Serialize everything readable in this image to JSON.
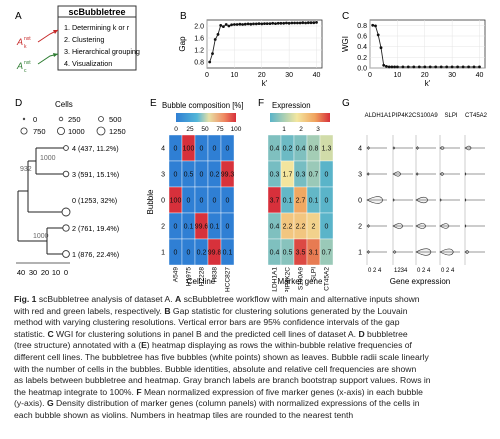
{
  "panels": {
    "A": {
      "letter": "A",
      "title": "scBubbletree",
      "steps": [
        "1. Determining k or r",
        "2. Clustering",
        "3. Hierarchical grouping",
        "4. Visualization"
      ],
      "alt_label_1": "A",
      "alt_label_1_sup": "nxt",
      "alt_label_1_sub": "k",
      "alt_label_2": "A",
      "alt_label_2_sup": "nxt",
      "alt_label_2_sub": "c"
    },
    "B": {
      "letter": "B"
    },
    "C": {
      "letter": "C"
    },
    "D": {
      "letter": "D",
      "legend_title": "Cells",
      "legend_sizes": [
        "0",
        "250",
        "500",
        "750",
        "1000",
        "1250"
      ],
      "bootstrap_labels": [
        "1000",
        "932",
        "1000"
      ],
      "leaves": [
        "4 (437, 11.2%)",
        "3 (591, 15.1%)",
        "0 (1253, 32%)",
        "2 (761, 19.4%)",
        "1 (876, 22.4%)"
      ],
      "axis_ticks": [
        "40",
        "30",
        "20",
        "10",
        "0"
      ]
    },
    "E": {
      "letter": "E",
      "title": "Bubble composition [%]",
      "scale_ticks": [
        "0",
        "25",
        "50",
        "75",
        "100"
      ],
      "y_label": "Bubble",
      "x_label": "Cell line",
      "bubbles": [
        "4",
        "3",
        "0",
        "2",
        "1"
      ],
      "columns": [
        "A549",
        "H1975",
        "H2228",
        "H838",
        "HCC827"
      ],
      "cells": [
        [
          "0",
          "100",
          "0",
          "0",
          "0"
        ],
        [
          "0",
          "0.5",
          "0",
          "0.2",
          "99.3"
        ],
        [
          "100",
          "0",
          "0",
          "0",
          "0"
        ],
        [
          "0",
          "0.1",
          "99.6",
          "0.1",
          "0"
        ],
        [
          "0",
          "0",
          "0.2",
          "99.8",
          "0.1"
        ]
      ],
      "values": [
        [
          0,
          100,
          0,
          0,
          0
        ],
        [
          0,
          0.5,
          0,
          0.2,
          99.3
        ],
        [
          100,
          0,
          0,
          0,
          0
        ],
        [
          0,
          0.1,
          99.6,
          0.1,
          0
        ],
        [
          0,
          0,
          0.2,
          99.8,
          0.1
        ]
      ]
    },
    "F": {
      "letter": "F",
      "title": "Expression",
      "scale_ticks": [
        "1",
        "2",
        "3"
      ],
      "x_label": "Marker gene",
      "columns": [
        "ALDH1A1",
        "PIP4K2C",
        "S100A9",
        "SLPI",
        "CT45A2"
      ],
      "cells": [
        [
          "0.4",
          "0.2",
          "0.4",
          "0.8",
          "1.3"
        ],
        [
          "0.3",
          "1.7",
          "0.3",
          "0.7",
          "0"
        ],
        [
          "3.7",
          "0.1",
          "2.7",
          "0.1",
          "0"
        ],
        [
          "0.4",
          "2.2",
          "2.2",
          "2",
          "0"
        ],
        [
          "0.4",
          "0.5",
          "3.5",
          "3.1",
          "0.7"
        ]
      ],
      "values": [
        [
          0.4,
          0.2,
          0.4,
          0.8,
          1.3
        ],
        [
          0.3,
          1.7,
          0.3,
          0.7,
          0
        ],
        [
          3.7,
          0.1,
          2.7,
          0.1,
          0
        ],
        [
          0.4,
          2.2,
          2.2,
          2,
          0
        ],
        [
          0.4,
          0.5,
          3.5,
          3.1,
          0.7
        ]
      ]
    },
    "G": {
      "letter": "G",
      "x_label": "Gene expression",
      "genes": [
        "ALDH1A1",
        "PIP4K2C",
        "S100A9",
        "SLPI",
        "CT45A2"
      ],
      "x_ticks": [
        "0 2 4",
        "1234",
        "0 2 4",
        "0 2 4",
        ""
      ]
    }
  },
  "chart_data": [
    {
      "type": "line",
      "panel": "B",
      "xlabel": "k'",
      "ylabel": "Gap",
      "xlim": [
        0,
        42
      ],
      "ylim": [
        0.6,
        2.2
      ],
      "x_ticks": [
        0,
        10,
        20,
        30,
        40
      ],
      "y_ticks": [
        0.8,
        1.2,
        1.6,
        2.0
      ],
      "x": [
        1,
        2,
        3,
        4,
        5,
        6,
        7,
        8,
        9,
        10,
        11,
        12,
        13,
        14,
        15,
        16,
        17,
        18,
        19,
        20,
        21,
        22,
        23,
        24,
        25,
        26,
        27,
        28,
        29,
        30,
        31,
        32,
        33,
        34,
        35,
        36,
        37,
        38,
        39,
        40
      ],
      "y": [
        0.8,
        1.08,
        1.55,
        1.72,
        2.02,
        1.98,
        2.05,
        2.0,
        2.04,
        2.05,
        2.05,
        2.06,
        2.05,
        2.06,
        2.07,
        2.06,
        2.07,
        2.07,
        2.08,
        2.07,
        2.08,
        2.08,
        2.08,
        2.09,
        2.08,
        2.09,
        2.09,
        2.09,
        2.1,
        2.09,
        2.1,
        2.1,
        2.1,
        2.1,
        2.11,
        2.1,
        2.11,
        2.11,
        2.11,
        2.12
      ]
    },
    {
      "type": "line",
      "panel": "C",
      "xlabel": "k'",
      "ylabel": "WGI",
      "xlim": [
        0,
        42
      ],
      "ylim": [
        0,
        0.9
      ],
      "x_ticks": [
        0,
        10,
        20,
        30,
        40
      ],
      "y_ticks": [
        0.0,
        0.2,
        0.4,
        0.6,
        0.8
      ],
      "x": [
        1,
        2,
        3,
        4,
        5,
        6,
        7,
        8,
        9,
        10,
        12,
        14,
        16,
        18,
        20,
        22,
        24,
        26,
        28,
        30,
        32,
        34,
        36,
        38,
        40
      ],
      "y": [
        0.8,
        0.79,
        0.62,
        0.38,
        0.05,
        0.03,
        0.02,
        0.02,
        0.02,
        0.02,
        0.02,
        0.02,
        0.02,
        0.02,
        0.02,
        0.02,
        0.02,
        0.02,
        0.02,
        0.02,
        0.02,
        0.02,
        0.02,
        0.02,
        0.02
      ]
    }
  ],
  "caption": {
    "fig_label": "Fig. 1",
    "lines": [
      [
        {
          "b": false,
          "t": "  scBubbletree analysis of dataset A. "
        },
        {
          "b": true,
          "t": "A"
        },
        {
          "b": false,
          "t": " scBubbletree workflow with main and alternative inputs shown"
        }
      ],
      [
        {
          "b": false,
          "t": "with red and green labels, respectively. "
        },
        {
          "b": true,
          "t": "B"
        },
        {
          "b": false,
          "t": " Gap statistic for clustering solutions generated by the Louvain"
        }
      ],
      [
        {
          "b": false,
          "t": "method with varying clustering resolutions. Vertical error bars are 95% confidence intervals of the gap"
        }
      ],
      [
        {
          "b": false,
          "t": "statistic. "
        },
        {
          "b": true,
          "t": "C"
        },
        {
          "b": false,
          "t": " WGI for clustering solutions in panel B and the predicted cell lines of dataset A. "
        },
        {
          "b": true,
          "t": "D"
        },
        {
          "b": false,
          "t": " bubbletree"
        }
      ],
      [
        {
          "b": false,
          "t": "(tree structure) annotated with a ("
        },
        {
          "b": true,
          "t": "E"
        },
        {
          "b": false,
          "t": ") heatmap displaying as rows the within-bubble relative frequencies of"
        }
      ],
      [
        {
          "b": false,
          "t": "different cell lines. The bubbletree has five bubbles (white points) shown as leaves. Bubble radii scale linearly"
        }
      ],
      [
        {
          "b": false,
          "t": "with the number of cells in the bubbles. Bubble identities, absolute and relative cell frequencies are shown"
        }
      ],
      [
        {
          "b": false,
          "t": "as labels between bubbletree and heatmap. Gray branch labels are branch bootstrap support values. Rows in"
        }
      ],
      [
        {
          "b": false,
          "t": "the heatmap integrate to 100%. "
        },
        {
          "b": true,
          "t": "F"
        },
        {
          "b": false,
          "t": " Mean normalized expression of five marker genes (x-axis) in each bubble"
        }
      ],
      [
        {
          "b": false,
          "t": "(y-axis). "
        },
        {
          "b": true,
          "t": "G"
        },
        {
          "b": false,
          "t": " Density distribution of marker genes (column panels) with normalized expressions of the cells in"
        }
      ],
      [
        {
          "b": false,
          "t": "each bubble shown as violins. Numbers in heatmap tiles are rounded to the nearest tenth"
        }
      ]
    ]
  }
}
